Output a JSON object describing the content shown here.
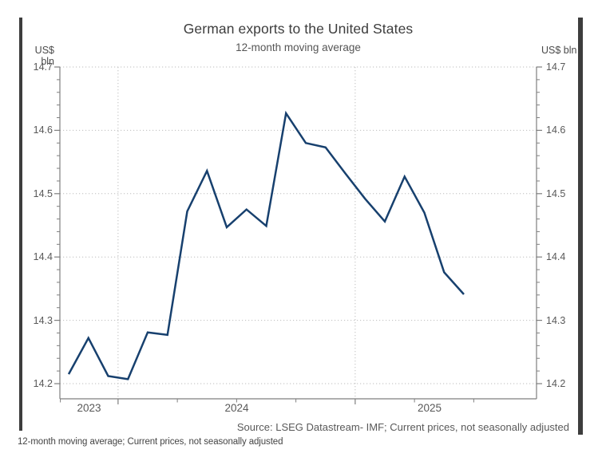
{
  "chart": {
    "title": "German exports to the United States",
    "subtitle": "12-month moving average",
    "unit_left": "US$ bln",
    "unit_right": "US$ bln",
    "source": "Source: LSEG Datastream- IMF; Current prices, not seasonally adjusted",
    "footnote": "12-month moving average; Current prices, not seasonally adjusted",
    "colors": {
      "line": "#17406e",
      "axis": "#7f7f7f",
      "grid": "#bdbdbd",
      "accent_bars": "#3d3d3d",
      "title_text": "#3d3d3d",
      "tick_text": "#595959"
    }
  },
  "chart_data": {
    "type": "line",
    "title": "German exports to the United States",
    "subtitle": "12-month moving average",
    "ylabel": "US$ bln",
    "ylim": [
      14.2,
      14.7
    ],
    "y_ticks": [
      14.2,
      14.3,
      14.4,
      14.5,
      14.6,
      14.7
    ],
    "y_minor_tick_step": 0.02,
    "x_year_labels": [
      "2023",
      "2024",
      "2025"
    ],
    "grid": "dotted horizontal at each 0.1; dotted vertical at year starts (Jan 2024, Jan 2025)",
    "legend_position": "none",
    "x": [
      "Oct 2023",
      "Nov 2023",
      "Dec 2023",
      "Jan 2024",
      "Feb 2024",
      "Mar 2024",
      "Apr 2024",
      "May 2024",
      "Jun 2024",
      "Jul 2024",
      "Aug 2024",
      "Sep 2024",
      "Oct 2024",
      "Nov 2024",
      "Dec 2024",
      "Jan 2025",
      "Feb 2025",
      "Mar 2025",
      "Apr 2025",
      "May 2025",
      "Jun 2025"
    ],
    "series": [
      {
        "name": "German exports to the United States, 12-month moving average (US$ bln)",
        "values": [
          14.215,
          14.272,
          14.212,
          14.207,
          14.281,
          14.277,
          14.472,
          14.536,
          14.447,
          14.475,
          14.449,
          14.627,
          14.58,
          14.573,
          14.532,
          14.492,
          14.456,
          14.527,
          14.47,
          14.376,
          14.341
        ]
      }
    ],
    "source": "Source: LSEG Datastream- IMF; Current prices, not seasonally adjusted"
  }
}
